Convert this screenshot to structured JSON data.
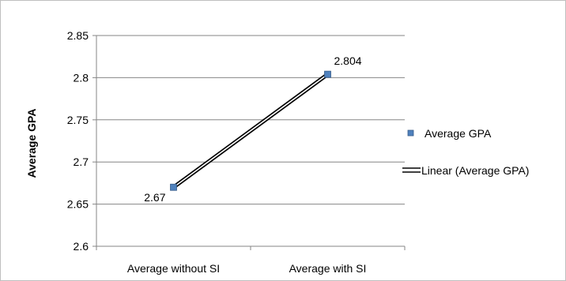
{
  "chart_data": {
    "type": "scatter",
    "ylabel": "Average GPA",
    "categories": [
      "Average without SI",
      "Average  with SI"
    ],
    "series": [
      {
        "name": "Average GPA",
        "values": [
          2.67,
          2.804
        ],
        "data_labels": [
          "2.67",
          "2.804"
        ],
        "color": "#4f81bd"
      }
    ],
    "trendline": {
      "name": "Linear (Average GPA)",
      "type": "linear",
      "color": "#000000"
    },
    "ylim": [
      2.6,
      2.85
    ],
    "yticks": [
      "2.6",
      "2.65",
      "2.7",
      "2.75",
      "2.8",
      "2.85"
    ],
    "grid": true,
    "legend_position": "right"
  }
}
